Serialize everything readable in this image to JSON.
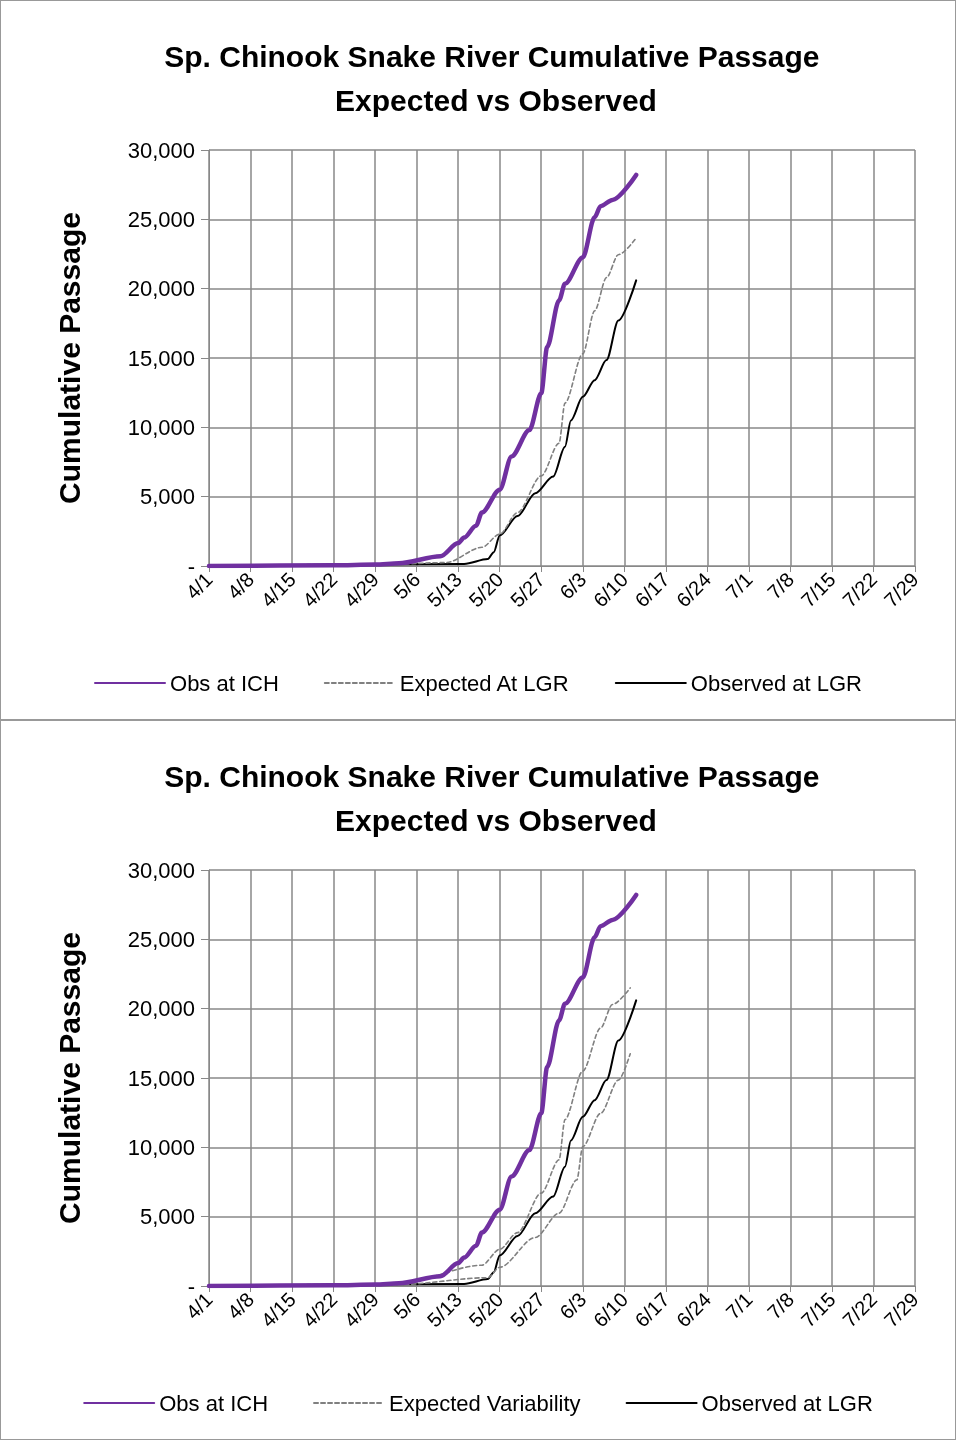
{
  "chart_data": [
    {
      "type": "line",
      "title": "Sp. Chinook Snake River Cumulative Passage Expected vs Observed",
      "ylabel": "Cumulative Passage",
      "xlim": [
        "--04-01",
        "--07-29"
      ],
      "xticks": [
        {
          "value": "--04-01",
          "label": "4/1"
        },
        {
          "value": "--04-08",
          "label": "4/8"
        },
        {
          "value": "--04-15",
          "label": "4/15"
        },
        {
          "value": "--04-22",
          "label": "4/22"
        },
        {
          "value": "--04-29",
          "label": "4/29"
        },
        {
          "value": "--05-06",
          "label": "5/6"
        },
        {
          "value": "--05-13",
          "label": "5/13"
        },
        {
          "value": "--05-20",
          "label": "5/20"
        },
        {
          "value": "--05-27",
          "label": "5/27"
        },
        {
          "value": "--06-03",
          "label": "6/3"
        },
        {
          "value": "--06-10",
          "label": "6/10"
        },
        {
          "value": "--06-17",
          "label": "6/17"
        },
        {
          "value": "--06-24",
          "label": "6/24"
        },
        {
          "value": "--07-01",
          "label": "7/1"
        },
        {
          "value": "--07-08",
          "label": "7/8"
        },
        {
          "value": "--07-15",
          "label": "7/15"
        },
        {
          "value": "--07-22",
          "label": "7/22"
        },
        {
          "value": "--07-29",
          "label": "7/29"
        }
      ],
      "ylim": [
        0,
        30000
      ],
      "yticks": [
        {
          "value": 0,
          "label": "-"
        },
        {
          "value": 5000,
          "label": "5,000"
        },
        {
          "value": 10000,
          "label": "10,000"
        },
        {
          "value": 15000,
          "label": "15,000"
        },
        {
          "value": 20000,
          "label": "20,000"
        },
        {
          "value": 25000,
          "label": "25,000"
        },
        {
          "value": 30000,
          "label": "30,000"
        }
      ],
      "grid": true,
      "legend": "bottom",
      "marker": "none",
      "series": [
        {
          "name": "Obs at ICH",
          "color": "#7030a0",
          "line_style": "solid",
          "x": [
            "--04-01",
            "--04-22",
            "--04-29",
            "--05-03",
            "--05-10",
            "--05-13",
            "--05-14",
            "--05-16",
            "--05-17",
            "--05-20",
            "--05-22",
            "--05-25",
            "--05-27",
            "--05-28",
            "--05-30",
            "--05-31",
            "--06-03",
            "--06-05",
            "--06-06",
            "--06-08",
            "--06-12"
          ],
          "values": [
            0,
            50,
            100,
            200,
            700,
            1650,
            2050,
            2900,
            3850,
            5500,
            7900,
            9800,
            12450,
            15800,
            19150,
            20350,
            22250,
            25150,
            25950,
            26400,
            28200
          ]
        },
        {
          "name": "Expected At LGR",
          "color": "#808080",
          "line_style": "dashed",
          "x": [
            "--04-01",
            "--05-03",
            "--05-11",
            "--05-17",
            "--05-20",
            "--05-23",
            "--05-27",
            "--05-30",
            "--05-31",
            "--06-03",
            "--06-05",
            "--06-07",
            "--06-09",
            "--06-12"
          ],
          "values": [
            0,
            150,
            250,
            1350,
            2300,
            3850,
            6500,
            8850,
            11750,
            15300,
            18400,
            20800,
            22450,
            23650
          ]
        },
        {
          "name": "Observed at LGR",
          "color": "#000000",
          "line_style": "solid",
          "x": [
            "--04-01",
            "--05-14",
            "--05-18",
            "--05-19",
            "--05-20",
            "--05-23",
            "--05-26",
            "--05-29",
            "--05-31",
            "--06-01",
            "--06-03",
            "--06-05",
            "--06-07",
            "--06-09",
            "--06-12"
          ],
          "values": [
            0,
            150,
            500,
            1000,
            2200,
            3600,
            5250,
            6450,
            8600,
            10500,
            12200,
            13400,
            14850,
            17700,
            20600
          ]
        }
      ]
    },
    {
      "type": "line",
      "title": "Sp. Chinook Snake River Cumulative Passage Expected vs Observed",
      "ylabel": "Cumulative Passage",
      "xlim": [
        "--04-01",
        "--07-29"
      ],
      "xticks": [
        {
          "value": "--04-01",
          "label": "4/1"
        },
        {
          "value": "--04-08",
          "label": "4/8"
        },
        {
          "value": "--04-15",
          "label": "4/15"
        },
        {
          "value": "--04-22",
          "label": "4/22"
        },
        {
          "value": "--04-29",
          "label": "4/29"
        },
        {
          "value": "--05-06",
          "label": "5/6"
        },
        {
          "value": "--05-13",
          "label": "5/13"
        },
        {
          "value": "--05-20",
          "label": "5/20"
        },
        {
          "value": "--05-27",
          "label": "5/27"
        },
        {
          "value": "--06-03",
          "label": "6/3"
        },
        {
          "value": "--06-10",
          "label": "6/10"
        },
        {
          "value": "--06-17",
          "label": "6/17"
        },
        {
          "value": "--06-24",
          "label": "6/24"
        },
        {
          "value": "--07-01",
          "label": "7/1"
        },
        {
          "value": "--07-08",
          "label": "7/8"
        },
        {
          "value": "--07-15",
          "label": "7/15"
        },
        {
          "value": "--07-22",
          "label": "7/22"
        },
        {
          "value": "--07-29",
          "label": "7/29"
        }
      ],
      "ylim": [
        0,
        30000
      ],
      "yticks": [
        {
          "value": 0,
          "label": "-"
        },
        {
          "value": 5000,
          "label": "5,000"
        },
        {
          "value": 10000,
          "label": "10,000"
        },
        {
          "value": 15000,
          "label": "15,000"
        },
        {
          "value": 20000,
          "label": "20,000"
        },
        {
          "value": 25000,
          "label": "25,000"
        },
        {
          "value": 30000,
          "label": "30,000"
        }
      ],
      "grid": true,
      "legend": "bottom",
      "marker": "none",
      "series": [
        {
          "name": "Obs at ICH",
          "color": "#7030a0",
          "line_style": "solid",
          "x": [
            "--04-01",
            "--04-22",
            "--04-29",
            "--05-03",
            "--05-10",
            "--05-13",
            "--05-14",
            "--05-16",
            "--05-17",
            "--05-20",
            "--05-22",
            "--05-25",
            "--05-27",
            "--05-28",
            "--05-30",
            "--05-31",
            "--06-03",
            "--06-05",
            "--06-06",
            "--06-08",
            "--06-12"
          ],
          "values": [
            0,
            50,
            100,
            200,
            700,
            1650,
            2050,
            2900,
            3850,
            5500,
            7900,
            9800,
            12450,
            15800,
            19150,
            20350,
            22250,
            25150,
            25950,
            26400,
            28200
          ]
        },
        {
          "name": "Expected Variability",
          "color": "#808080",
          "line_style": "dashed",
          "x": [
            "--04-01",
            "--05-03",
            "--05-17",
            "--05-20",
            "--05-23",
            "--05-27",
            "--05-30",
            "--05-31",
            "--06-03",
            "--06-06",
            "--06-08",
            "--06-11"
          ],
          "values": [
            0,
            150,
            1500,
            2650,
            3850,
            6700,
            9100,
            12000,
            15500,
            18600,
            20300,
            21500
          ]
        },
        {
          "color": "#808080",
          "line_style": "dashed",
          "x": [
            "--04-01",
            "--05-03",
            "--05-18",
            "--05-20",
            "--05-26",
            "--05-30",
            "--06-02",
            "--06-03",
            "--06-06",
            "--06-09",
            "--06-11"
          ],
          "values": [
            0,
            100,
            600,
            1350,
            3500,
            5250,
            7650,
            10050,
            12450,
            14850,
            16750
          ]
        },
        {
          "name": "Observed at LGR",
          "color": "#000000",
          "line_style": "solid",
          "x": [
            "--04-01",
            "--05-14",
            "--05-18",
            "--05-19",
            "--05-20",
            "--05-23",
            "--05-26",
            "--05-29",
            "--05-31",
            "--06-01",
            "--06-03",
            "--06-05",
            "--06-07",
            "--06-09",
            "--06-12"
          ],
          "values": [
            0,
            150,
            500,
            1000,
            2200,
            3600,
            5250,
            6450,
            8600,
            10500,
            12200,
            13400,
            14850,
            17700,
            20600
          ]
        }
      ]
    }
  ]
}
